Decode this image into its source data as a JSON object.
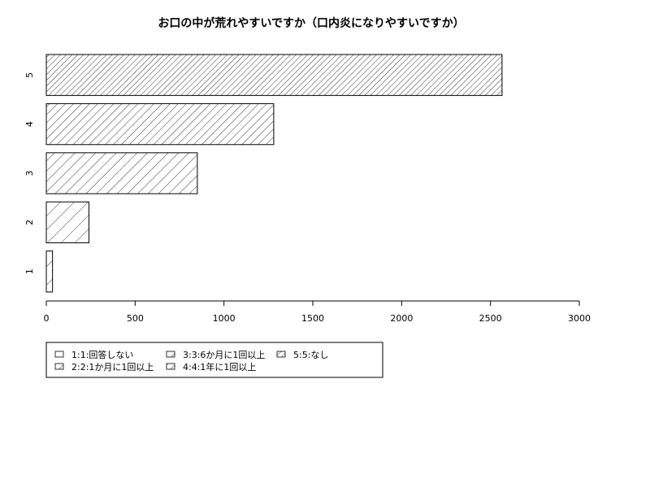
{
  "chart_data": {
    "type": "bar",
    "orientation": "horizontal",
    "title": "お口の中が荒れやすいですか（口内炎になりやすいですか）",
    "categories": [
      "1",
      "2",
      "3",
      "4",
      "5"
    ],
    "values": [
      35,
      240,
      850,
      1280,
      2565
    ],
    "xlim": [
      0,
      3000
    ],
    "xticks": [
      "0",
      "500",
      "1000",
      "1500",
      "2000",
      "2500",
      "3000"
    ],
    "xlabel": "",
    "ylabel": "",
    "grid": false,
    "legend_position": "bottom",
    "legend": [
      "1:1:回答しない",
      "2:2:1か月に1回以上",
      "3:3:6か月に1回以上",
      "4:4:1年に1回以上",
      "5:5:なし"
    ],
    "bar_fill": "#ffffff",
    "bar_stroke": "#000000",
    "pattern": "diagonal-hatching"
  }
}
